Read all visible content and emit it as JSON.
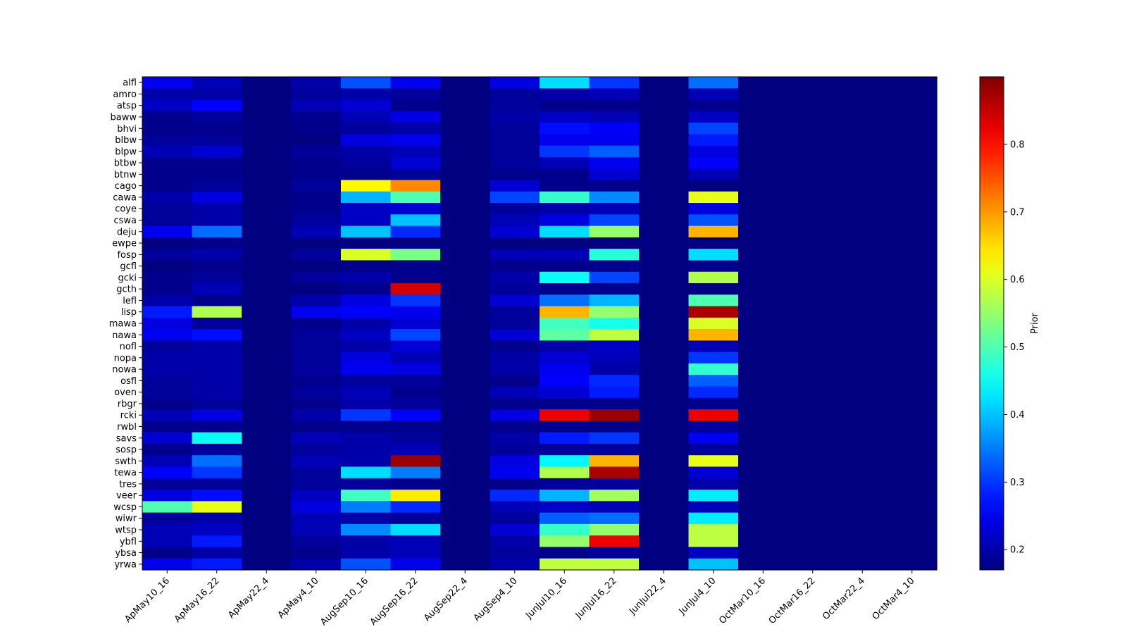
{
  "chart_data": {
    "type": "heatmap",
    "colormap": "jet",
    "colorbar_label": "Prior",
    "colorbar_ticks": [
      0.2,
      0.3,
      0.4,
      0.5,
      0.6,
      0.7,
      0.8
    ],
    "vmin": 0.17,
    "vmax": 0.9,
    "x": [
      "ApMay10_16",
      "ApMay16_22",
      "ApMay22_4",
      "ApMay4_10",
      "AugSep10_16",
      "AugSep16_22",
      "AugSep22_4",
      "AugSep4_10",
      "JunJul10_16",
      "JunJul16_22",
      "JunJul22_4",
      "JunJul4_10",
      "OctMar10_16",
      "OctMar16_22",
      "OctMar22_4",
      "OctMar4_10"
    ],
    "y": [
      "alfl",
      "amro",
      "atsp",
      "baww",
      "bhvi",
      "blbw",
      "blpw",
      "btbw",
      "btnw",
      "cago",
      "cawa",
      "coye",
      "cswa",
      "deju",
      "ewpe",
      "fosp",
      "gcfl",
      "gcki",
      "gcth",
      "lefl",
      "lisp",
      "mawa",
      "nawa",
      "nofl",
      "nopa",
      "nowa",
      "osfl",
      "oven",
      "rbgr",
      "rcki",
      "rwbl",
      "savs",
      "sosp",
      "swth",
      "tewa",
      "tres",
      "veer",
      "wcsp",
      "wiwr",
      "wtsp",
      "ybfl",
      "ybsa",
      "yrwa"
    ],
    "values": [
      [
        0.25,
        0.21,
        0.17,
        0.2,
        0.32,
        0.25,
        0.17,
        0.24,
        0.42,
        0.3,
        0.17,
        0.34,
        0.17,
        0.17,
        0.17,
        0.17
      ],
      [
        0.2,
        0.2,
        0.17,
        0.19,
        0.2,
        0.19,
        0.17,
        0.19,
        0.2,
        0.21,
        0.17,
        0.21,
        0.17,
        0.17,
        0.17,
        0.17
      ],
      [
        0.22,
        0.26,
        0.17,
        0.21,
        0.23,
        0.18,
        0.17,
        0.19,
        0.18,
        0.18,
        0.17,
        0.18,
        0.17,
        0.17,
        0.17,
        0.17
      ],
      [
        0.18,
        0.19,
        0.17,
        0.18,
        0.21,
        0.24,
        0.17,
        0.2,
        0.22,
        0.21,
        0.17,
        0.22,
        0.17,
        0.17,
        0.17,
        0.17
      ],
      [
        0.18,
        0.18,
        0.17,
        0.18,
        0.19,
        0.2,
        0.17,
        0.19,
        0.27,
        0.26,
        0.17,
        0.31,
        0.17,
        0.17,
        0.17,
        0.17
      ],
      [
        0.19,
        0.19,
        0.17,
        0.17,
        0.24,
        0.25,
        0.17,
        0.19,
        0.25,
        0.25,
        0.17,
        0.28,
        0.17,
        0.17,
        0.17,
        0.17
      ],
      [
        0.21,
        0.23,
        0.17,
        0.19,
        0.2,
        0.21,
        0.17,
        0.19,
        0.3,
        0.33,
        0.17,
        0.24,
        0.17,
        0.17,
        0.17,
        0.17
      ],
      [
        0.18,
        0.18,
        0.17,
        0.18,
        0.19,
        0.23,
        0.17,
        0.19,
        0.21,
        0.25,
        0.17,
        0.26,
        0.17,
        0.17,
        0.17,
        0.17
      ],
      [
        0.18,
        0.18,
        0.17,
        0.18,
        0.18,
        0.19,
        0.17,
        0.18,
        0.18,
        0.23,
        0.17,
        0.21,
        0.17,
        0.17,
        0.17,
        0.17
      ],
      [
        0.18,
        0.19,
        0.17,
        0.19,
        0.63,
        0.71,
        0.17,
        0.23,
        0.18,
        0.18,
        0.17,
        0.17,
        0.17,
        0.17,
        0.17,
        0.17
      ],
      [
        0.2,
        0.24,
        0.17,
        0.18,
        0.39,
        0.5,
        0.17,
        0.31,
        0.48,
        0.36,
        0.17,
        0.61,
        0.17,
        0.17,
        0.17,
        0.17
      ],
      [
        0.19,
        0.2,
        0.17,
        0.18,
        0.22,
        0.23,
        0.17,
        0.19,
        0.2,
        0.21,
        0.17,
        0.24,
        0.17,
        0.17,
        0.17,
        0.17
      ],
      [
        0.19,
        0.2,
        0.17,
        0.19,
        0.22,
        0.4,
        0.17,
        0.21,
        0.24,
        0.31,
        0.17,
        0.32,
        0.17,
        0.17,
        0.17,
        0.17
      ],
      [
        0.25,
        0.34,
        0.17,
        0.21,
        0.4,
        0.29,
        0.17,
        0.23,
        0.42,
        0.55,
        0.17,
        0.68,
        0.17,
        0.17,
        0.17,
        0.17
      ],
      [
        0.17,
        0.18,
        0.17,
        0.17,
        0.17,
        0.17,
        0.17,
        0.17,
        0.17,
        0.17,
        0.17,
        0.17,
        0.17,
        0.17,
        0.17,
        0.17
      ],
      [
        0.19,
        0.2,
        0.17,
        0.19,
        0.6,
        0.53,
        0.17,
        0.21,
        0.21,
        0.47,
        0.17,
        0.42,
        0.17,
        0.17,
        0.17,
        0.17
      ],
      [
        0.17,
        0.18,
        0.17,
        0.17,
        0.18,
        0.18,
        0.17,
        0.18,
        0.18,
        0.18,
        0.17,
        0.18,
        0.17,
        0.17,
        0.17,
        0.17
      ],
      [
        0.18,
        0.19,
        0.17,
        0.19,
        0.2,
        0.18,
        0.17,
        0.2,
        0.45,
        0.31,
        0.17,
        0.57,
        0.17,
        0.17,
        0.17,
        0.17
      ],
      [
        0.18,
        0.21,
        0.17,
        0.17,
        0.18,
        0.84,
        0.17,
        0.19,
        0.18,
        0.18,
        0.17,
        0.17,
        0.17,
        0.17,
        0.17,
        0.17
      ],
      [
        0.2,
        0.18,
        0.17,
        0.2,
        0.24,
        0.3,
        0.17,
        0.23,
        0.34,
        0.39,
        0.17,
        0.5,
        0.17,
        0.17,
        0.17,
        0.17
      ],
      [
        0.28,
        0.57,
        0.17,
        0.25,
        0.26,
        0.25,
        0.17,
        0.19,
        0.68,
        0.55,
        0.17,
        0.87,
        0.17,
        0.17,
        0.17,
        0.17
      ],
      [
        0.24,
        0.19,
        0.17,
        0.18,
        0.2,
        0.23,
        0.17,
        0.19,
        0.49,
        0.46,
        0.17,
        0.6,
        0.17,
        0.17,
        0.17,
        0.17
      ],
      [
        0.25,
        0.27,
        0.17,
        0.19,
        0.22,
        0.31,
        0.17,
        0.23,
        0.51,
        0.58,
        0.17,
        0.68,
        0.17,
        0.17,
        0.17,
        0.17
      ],
      [
        0.19,
        0.2,
        0.17,
        0.19,
        0.2,
        0.23,
        0.17,
        0.18,
        0.2,
        0.22,
        0.17,
        0.21,
        0.17,
        0.17,
        0.17,
        0.17
      ],
      [
        0.2,
        0.2,
        0.17,
        0.19,
        0.24,
        0.21,
        0.17,
        0.2,
        0.23,
        0.21,
        0.17,
        0.3,
        0.17,
        0.17,
        0.17,
        0.17
      ],
      [
        0.2,
        0.2,
        0.17,
        0.19,
        0.25,
        0.24,
        0.17,
        0.2,
        0.25,
        0.2,
        0.17,
        0.48,
        0.17,
        0.17,
        0.17,
        0.17
      ],
      [
        0.19,
        0.2,
        0.17,
        0.18,
        0.19,
        0.19,
        0.17,
        0.18,
        0.26,
        0.29,
        0.17,
        0.33,
        0.17,
        0.17,
        0.17,
        0.17
      ],
      [
        0.19,
        0.2,
        0.17,
        0.19,
        0.21,
        0.18,
        0.17,
        0.21,
        0.23,
        0.28,
        0.17,
        0.29,
        0.17,
        0.17,
        0.17,
        0.17
      ],
      [
        0.18,
        0.19,
        0.17,
        0.18,
        0.2,
        0.19,
        0.17,
        0.18,
        0.18,
        0.18,
        0.17,
        0.18,
        0.17,
        0.17,
        0.17,
        0.17
      ],
      [
        0.21,
        0.24,
        0.17,
        0.2,
        0.3,
        0.26,
        0.17,
        0.24,
        0.82,
        0.88,
        0.17,
        0.82,
        0.17,
        0.17,
        0.17,
        0.17
      ],
      [
        0.18,
        0.18,
        0.17,
        0.18,
        0.18,
        0.18,
        0.17,
        0.18,
        0.18,
        0.18,
        0.17,
        0.19,
        0.17,
        0.17,
        0.17,
        0.17
      ],
      [
        0.23,
        0.45,
        0.17,
        0.21,
        0.2,
        0.19,
        0.17,
        0.2,
        0.28,
        0.3,
        0.17,
        0.25,
        0.17,
        0.17,
        0.17,
        0.17
      ],
      [
        0.18,
        0.19,
        0.17,
        0.19,
        0.2,
        0.21,
        0.17,
        0.19,
        0.19,
        0.19,
        0.17,
        0.19,
        0.17,
        0.17,
        0.17,
        0.17
      ],
      [
        0.21,
        0.34,
        0.17,
        0.21,
        0.2,
        0.88,
        0.17,
        0.24,
        0.44,
        0.68,
        0.17,
        0.61,
        0.17,
        0.17,
        0.17,
        0.17
      ],
      [
        0.26,
        0.3,
        0.17,
        0.19,
        0.42,
        0.35,
        0.17,
        0.25,
        0.57,
        0.87,
        0.17,
        0.23,
        0.17,
        0.17,
        0.17,
        0.17
      ],
      [
        0.19,
        0.19,
        0.17,
        0.19,
        0.19,
        0.18,
        0.17,
        0.18,
        0.19,
        0.19,
        0.17,
        0.2,
        0.17,
        0.17,
        0.17,
        0.17
      ],
      [
        0.24,
        0.27,
        0.17,
        0.22,
        0.49,
        0.64,
        0.17,
        0.29,
        0.39,
        0.56,
        0.17,
        0.43,
        0.17,
        0.17,
        0.17,
        0.17
      ],
      [
        0.5,
        0.61,
        0.17,
        0.24,
        0.35,
        0.29,
        0.17,
        0.21,
        0.22,
        0.21,
        0.17,
        0.21,
        0.17,
        0.17,
        0.17,
        0.17
      ],
      [
        0.19,
        0.2,
        0.17,
        0.21,
        0.2,
        0.19,
        0.17,
        0.19,
        0.33,
        0.34,
        0.17,
        0.43,
        0.17,
        0.17,
        0.17,
        0.17
      ],
      [
        0.21,
        0.22,
        0.17,
        0.21,
        0.36,
        0.42,
        0.17,
        0.23,
        0.48,
        0.55,
        0.17,
        0.58,
        0.17,
        0.17,
        0.17,
        0.17
      ],
      [
        0.21,
        0.28,
        0.17,
        0.19,
        0.2,
        0.21,
        0.17,
        0.2,
        0.55,
        0.82,
        0.17,
        0.58,
        0.17,
        0.17,
        0.17,
        0.17
      ],
      [
        0.18,
        0.2,
        0.17,
        0.18,
        0.2,
        0.21,
        0.17,
        0.19,
        0.18,
        0.19,
        0.17,
        0.22,
        0.17,
        0.17,
        0.17,
        0.17
      ],
      [
        0.25,
        0.28,
        0.17,
        0.2,
        0.32,
        0.25,
        0.17,
        0.2,
        0.58,
        0.58,
        0.17,
        0.4,
        0.17,
        0.17,
        0.17,
        0.17
      ]
    ]
  }
}
